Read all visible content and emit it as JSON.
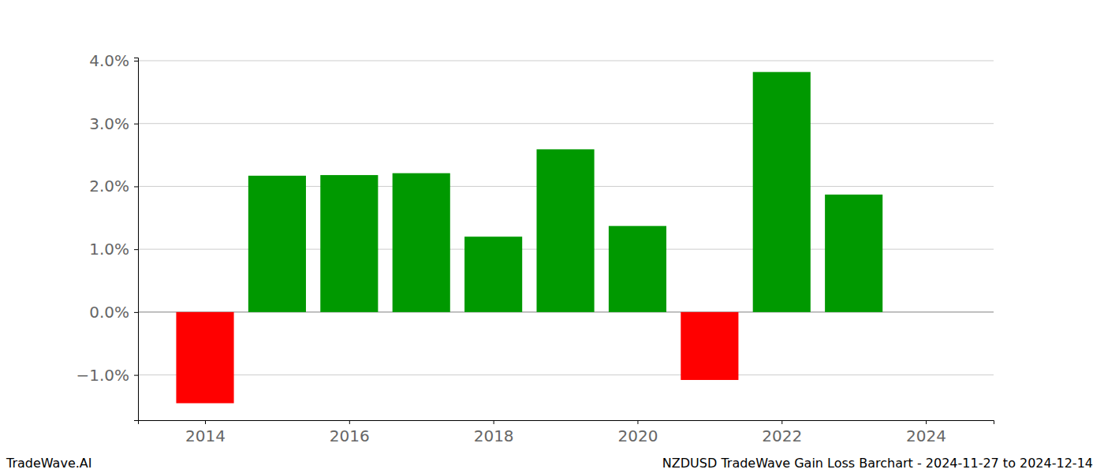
{
  "chart_data": {
    "type": "bar",
    "title": "NZDUSD TradeWave Gain Loss Barchart - 2024-11-27 to 2024-12-14",
    "annotations": [
      "TradeWave.AI"
    ],
    "x": [
      2014,
      2015,
      2016,
      2017,
      2018,
      2019,
      2020,
      2021,
      2022,
      2023
    ],
    "values": [
      -1.45,
      2.17,
      2.18,
      2.21,
      1.2,
      2.59,
      1.37,
      -1.08,
      3.82,
      1.87
    ],
    "colors": [
      "#ff0000",
      "#009900",
      "#009900",
      "#009900",
      "#009900",
      "#009900",
      "#009900",
      "#ff0000",
      "#009900",
      "#009900"
    ],
    "xlim": [
      2013.07,
      2024.94
    ],
    "xticks": [
      2014,
      2016,
      2018,
      2020,
      2022,
      2024
    ],
    "ylim": [
      -1.72,
      4.05
    ],
    "yticks": [
      {
        "value": -1,
        "label": "−1.0%"
      },
      {
        "value": 0,
        "label": "0.0%"
      },
      {
        "value": 1,
        "label": "1.0%"
      },
      {
        "value": 2,
        "label": "2.0%"
      },
      {
        "value": 3,
        "label": "3.0%"
      },
      {
        "value": 4,
        "label": "4.0%"
      }
    ],
    "grid": true
  }
}
